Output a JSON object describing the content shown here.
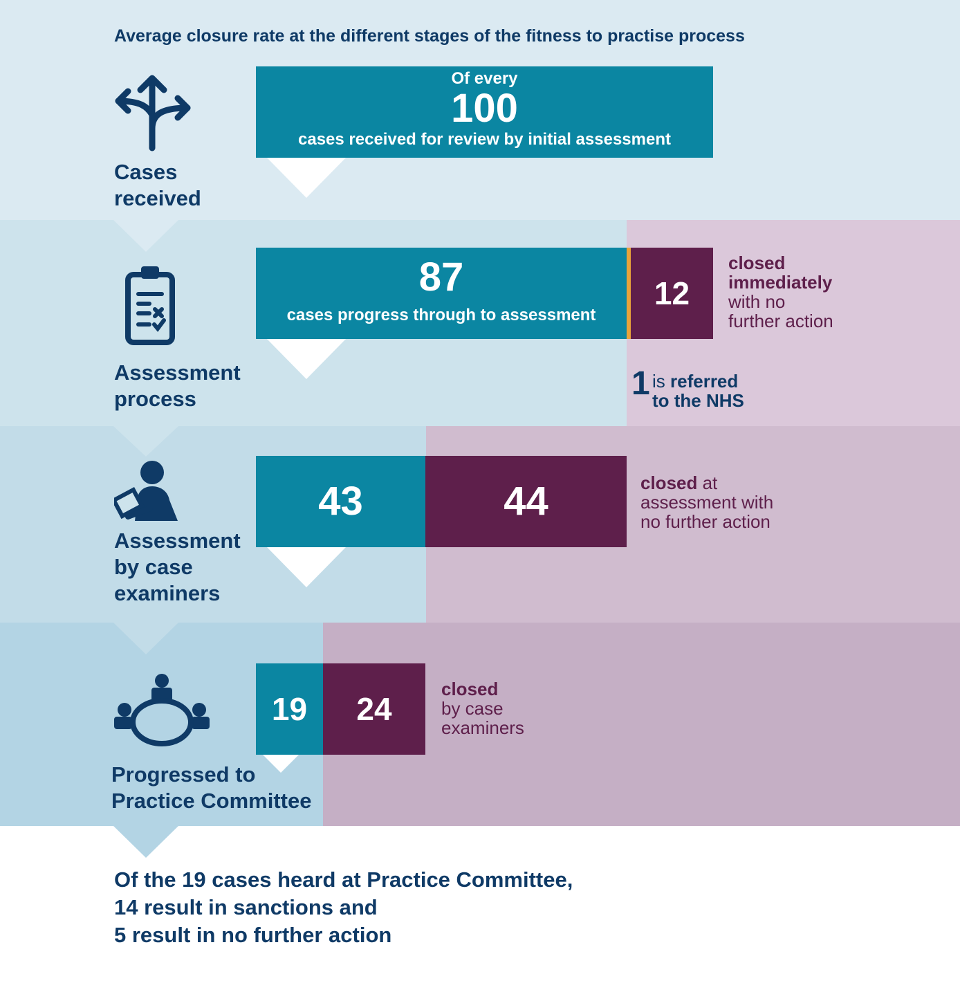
{
  "title": "Average closure rate at the different stages of the fitness to practise process",
  "colors": {
    "teal": "#0b86a2",
    "plum": "#5e1f4b",
    "navy": "#0f3a66",
    "accent_orange": "#e8a33a"
  },
  "stages": [
    {
      "label_line1": "Cases",
      "label_line2": "received",
      "icon": "directions-arrows-icon",
      "box": {
        "prefix": "Of every",
        "value": "100",
        "caption": "cases received for review by initial assessment"
      }
    },
    {
      "label_line1": "Assessment",
      "label_line2": "process",
      "icon": "clipboard-checklist-icon",
      "box": {
        "value": "87",
        "caption": "cases progress through to assessment"
      },
      "closed": {
        "value": "12",
        "note_bold1": "closed",
        "note_bold2": "immediately",
        "note_line3": "with no",
        "note_line4": "further action"
      },
      "referral": {
        "number": "1",
        "text_pre": "is ",
        "text_bold": "referred",
        "text_line2": "to the NHS"
      }
    },
    {
      "label_line1": "Assessment",
      "label_line2": "by case",
      "label_line3": "examiners",
      "icon": "person-reviewing-document-icon",
      "box": {
        "value": "43"
      },
      "closed": {
        "value": "44",
        "note_bold": "closed",
        "note_rest": " at",
        "note_line2": "assessment with",
        "note_line3": "no further action"
      }
    },
    {
      "label_line1": "Progressed to",
      "label_line2": "Practice Committee",
      "icon": "committee-meeting-icon",
      "box": {
        "value": "19"
      },
      "closed": {
        "value": "24",
        "note_bold": "closed",
        "note_line2": "by case",
        "note_line3": "examiners"
      }
    }
  ],
  "summary": {
    "line1": "Of the 19 cases heard at Practice Committee,",
    "line2": "14 result in sanctions and",
    "line3": "5 result in no further action"
  }
}
